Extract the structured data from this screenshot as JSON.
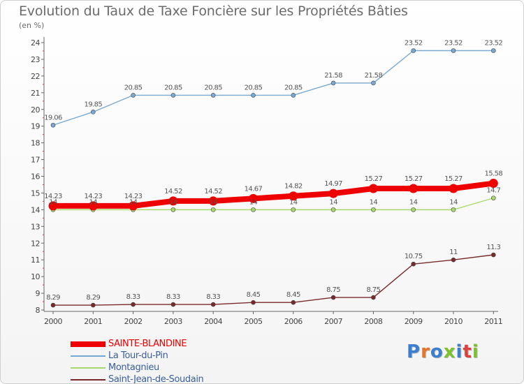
{
  "title": "Evolution du Taux de Taxe Foncière sur les Propriétés Bâties",
  "unit": "(en %)",
  "logo": {
    "text": "Proxiti",
    "letter_colors": [
      "#3a7fd0",
      "#e8742a",
      "#3a7fd0",
      "#7cc230",
      "#3a7fd0",
      "#e03f3f",
      "#7cc230"
    ]
  },
  "chart_data": {
    "type": "line",
    "title": "Evolution du Taux de Taxe Foncière sur les Propriétés Bâties",
    "ylabel": "(en %)",
    "xlabel": "",
    "x": [
      "2000",
      "2001",
      "2002",
      "2003",
      "2004",
      "2005",
      "2006",
      "2007",
      "2008",
      "2009",
      "2010",
      "2011"
    ],
    "ylim": [
      8,
      24
    ],
    "yticks": [
      8,
      9,
      10,
      11,
      12,
      13,
      14,
      15,
      16,
      17,
      18,
      19,
      20,
      21,
      22,
      23,
      24
    ],
    "grid": false,
    "legend": "bottom-left",
    "series": [
      {
        "name": "SAINTE-BLANDINE",
        "color": "#ee0000",
        "values": [
          14.23,
          14.23,
          14.23,
          14.52,
          14.52,
          14.67,
          14.82,
          14.97,
          15.27,
          15.27,
          15.27,
          15.58
        ],
        "labels": [
          "14.23",
          "14.23",
          "14.23",
          "14.52",
          "14.52",
          "14.67",
          "14.82",
          "14.97",
          "15.27",
          "15.27",
          "15.27",
          "15.58"
        ]
      },
      {
        "name": "La Tour-du-Pin",
        "color": "#78a9d2",
        "values": [
          19.06,
          19.85,
          20.85,
          20.85,
          20.85,
          20.85,
          20.85,
          21.58,
          21.58,
          23.52,
          23.52,
          23.52
        ],
        "labels": [
          "19.06",
          "19.85",
          "20.85",
          "20.85",
          "20.85",
          "20.85",
          "20.85",
          "21.58",
          "21.58",
          "23.52",
          "23.52",
          "23.52"
        ]
      },
      {
        "name": "Montagnieu",
        "color": "#a6d96a",
        "values": [
          14,
          14,
          14,
          14,
          14,
          14,
          14,
          14,
          14,
          14,
          14,
          14.7
        ],
        "labels": [
          "14",
          "14",
          "14",
          "14",
          "14",
          "14",
          "14",
          "14",
          "14",
          "14",
          "14",
          "14.7"
        ]
      },
      {
        "name": "Saint-Jean-de-Soudain",
        "color": "#7a2a2a",
        "values": [
          8.29,
          8.29,
          8.33,
          8.33,
          8.33,
          8.45,
          8.45,
          8.75,
          8.75,
          10.75,
          11,
          11.3
        ],
        "labels": [
          "8.29",
          "8.29",
          "8.33",
          "8.33",
          "8.33",
          "8.45",
          "8.45",
          "8.75",
          "8.75",
          "10.75",
          "11",
          "11.3"
        ]
      }
    ]
  }
}
